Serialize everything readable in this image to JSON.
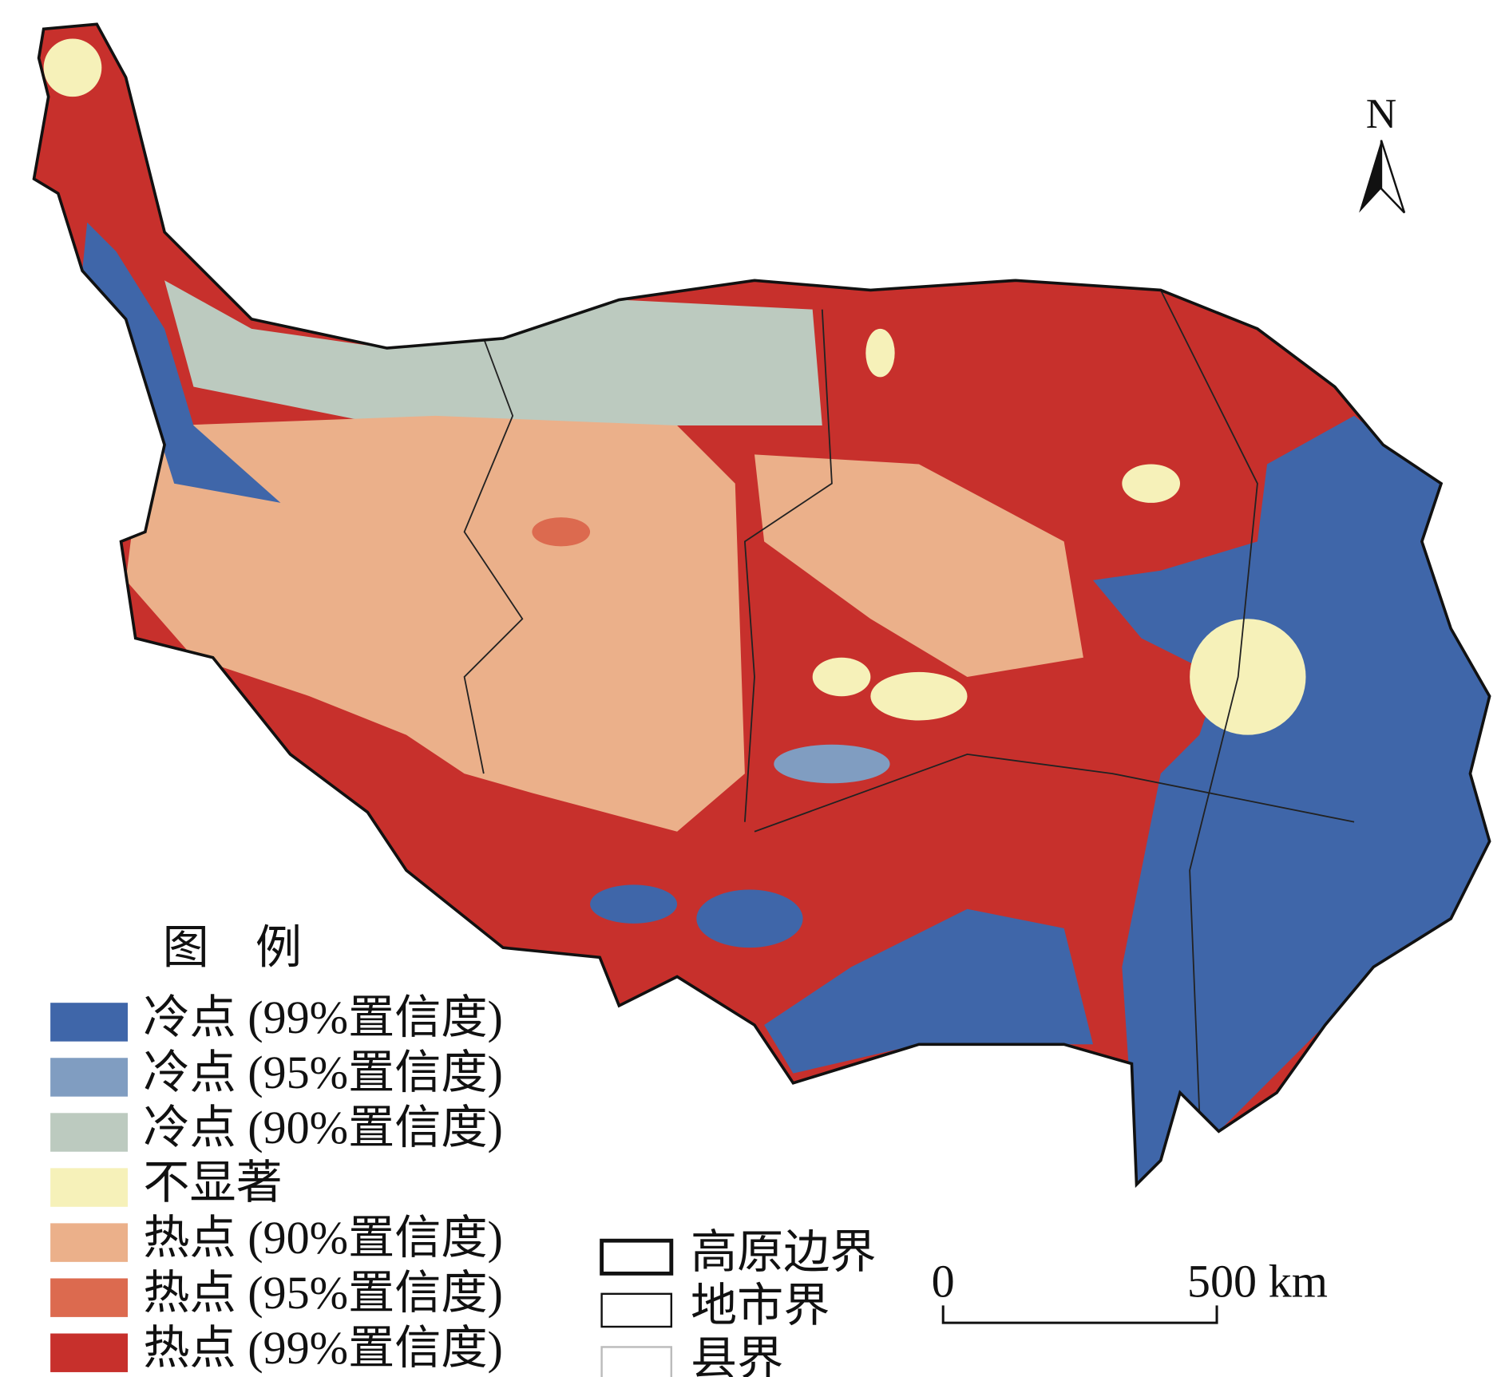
{
  "legend": {
    "title": "图　例",
    "items": [
      {
        "label": "冷点 (99%置信度)",
        "color": "#3f66a9"
      },
      {
        "label": "冷点 (95%置信度)",
        "color": "#809dc1"
      },
      {
        "label": "冷点 (90%置信度)",
        "color": "#bccabf"
      },
      {
        "label": "不显著",
        "color": "#f6f1b9"
      },
      {
        "label": "热点 (90%置信度)",
        "color": "#ebb08a"
      },
      {
        "label": "热点 (95%置信度)",
        "color": "#dc6a4f"
      },
      {
        "label": "热点 (99%置信度)",
        "color": "#c7302c"
      }
    ],
    "boundaries": [
      {
        "label": "高原边界"
      },
      {
        "label": "地市界"
      },
      {
        "label": "县界"
      }
    ]
  },
  "north": "N",
  "scale_bar": {
    "start": "0",
    "end": "500 km"
  }
}
